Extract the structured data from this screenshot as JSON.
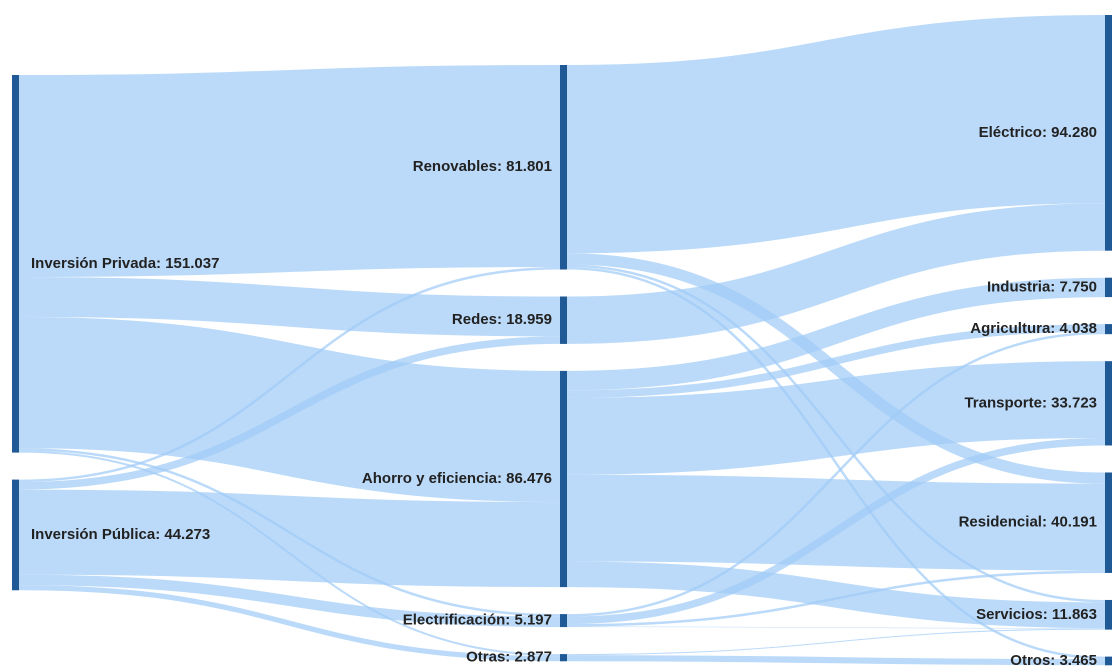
{
  "chart_data": {
    "type": "sankey",
    "nodes": [
      {
        "label": "Inversión Privada: 151.037",
        "value": 151.037
      },
      {
        "label": "Inversión Pública: 44.273",
        "value": 44.273
      },
      {
        "label": "Renovables: 81.801",
        "value": 81.801
      },
      {
        "label": "Redes: 18.959",
        "value": 18.959
      },
      {
        "label": "Ahorro y eficiencia: 86.476",
        "value": 86.476
      },
      {
        "label": "Electrificación: 5.197",
        "value": 5.197
      },
      {
        "label": "Otras: 2.877",
        "value": 2.877
      },
      {
        "label": "Eléctrico: 94.280",
        "value": 94.28
      },
      {
        "label": "Industria: 7.750",
        "value": 7.75
      },
      {
        "label": "Agricultura: 4.038",
        "value": 4.038
      },
      {
        "label": "Transporte: 33.723",
        "value": 33.723
      },
      {
        "label": "Residencial: 40.191",
        "value": 40.191
      },
      {
        "label": "Servicios: 11.863",
        "value": 11.863
      },
      {
        "label": "Otros: 3.465",
        "value": 3.465
      }
    ],
    "links": [
      {
        "source": 0,
        "target": 2,
        "value": 80.801
      },
      {
        "source": 0,
        "target": 3,
        "value": 15.959
      },
      {
        "source": 0,
        "target": 4,
        "value": 52.477
      },
      {
        "source": 0,
        "target": 5,
        "value": 1.0
      },
      {
        "source": 0,
        "target": 6,
        "value": 0.8
      },
      {
        "source": 1,
        "target": 2,
        "value": 1.0
      },
      {
        "source": 1,
        "target": 3,
        "value": 3.0
      },
      {
        "source": 1,
        "target": 4,
        "value": 33.999
      },
      {
        "source": 1,
        "target": 5,
        "value": 4.197
      },
      {
        "source": 1,
        "target": 6,
        "value": 2.077
      },
      {
        "source": 2,
        "target": 7,
        "value": 75.321
      },
      {
        "source": 2,
        "target": 11,
        "value": 4.48
      },
      {
        "source": 2,
        "target": 12,
        "value": 1.0
      },
      {
        "source": 2,
        "target": 13,
        "value": 1.0
      },
      {
        "source": 3,
        "target": 7,
        "value": 18.959
      },
      {
        "source": 4,
        "target": 8,
        "value": 7.75
      },
      {
        "source": 4,
        "target": 9,
        "value": 3.038
      },
      {
        "source": 4,
        "target": 10,
        "value": 30.723
      },
      {
        "source": 4,
        "target": 11,
        "value": 34.711
      },
      {
        "source": 4,
        "target": 12,
        "value": 10.254
      },
      {
        "source": 5,
        "target": 9,
        "value": 1.0
      },
      {
        "source": 5,
        "target": 10,
        "value": 3.0
      },
      {
        "source": 5,
        "target": 11,
        "value": 1.0
      },
      {
        "source": 5,
        "target": 12,
        "value": 0.197
      },
      {
        "source": 6,
        "target": 12,
        "value": 0.412
      },
      {
        "source": 6,
        "target": 13,
        "value": 2.465
      }
    ],
    "node_color": "#1f5a96",
    "link_color": "#9ecbf6"
  }
}
